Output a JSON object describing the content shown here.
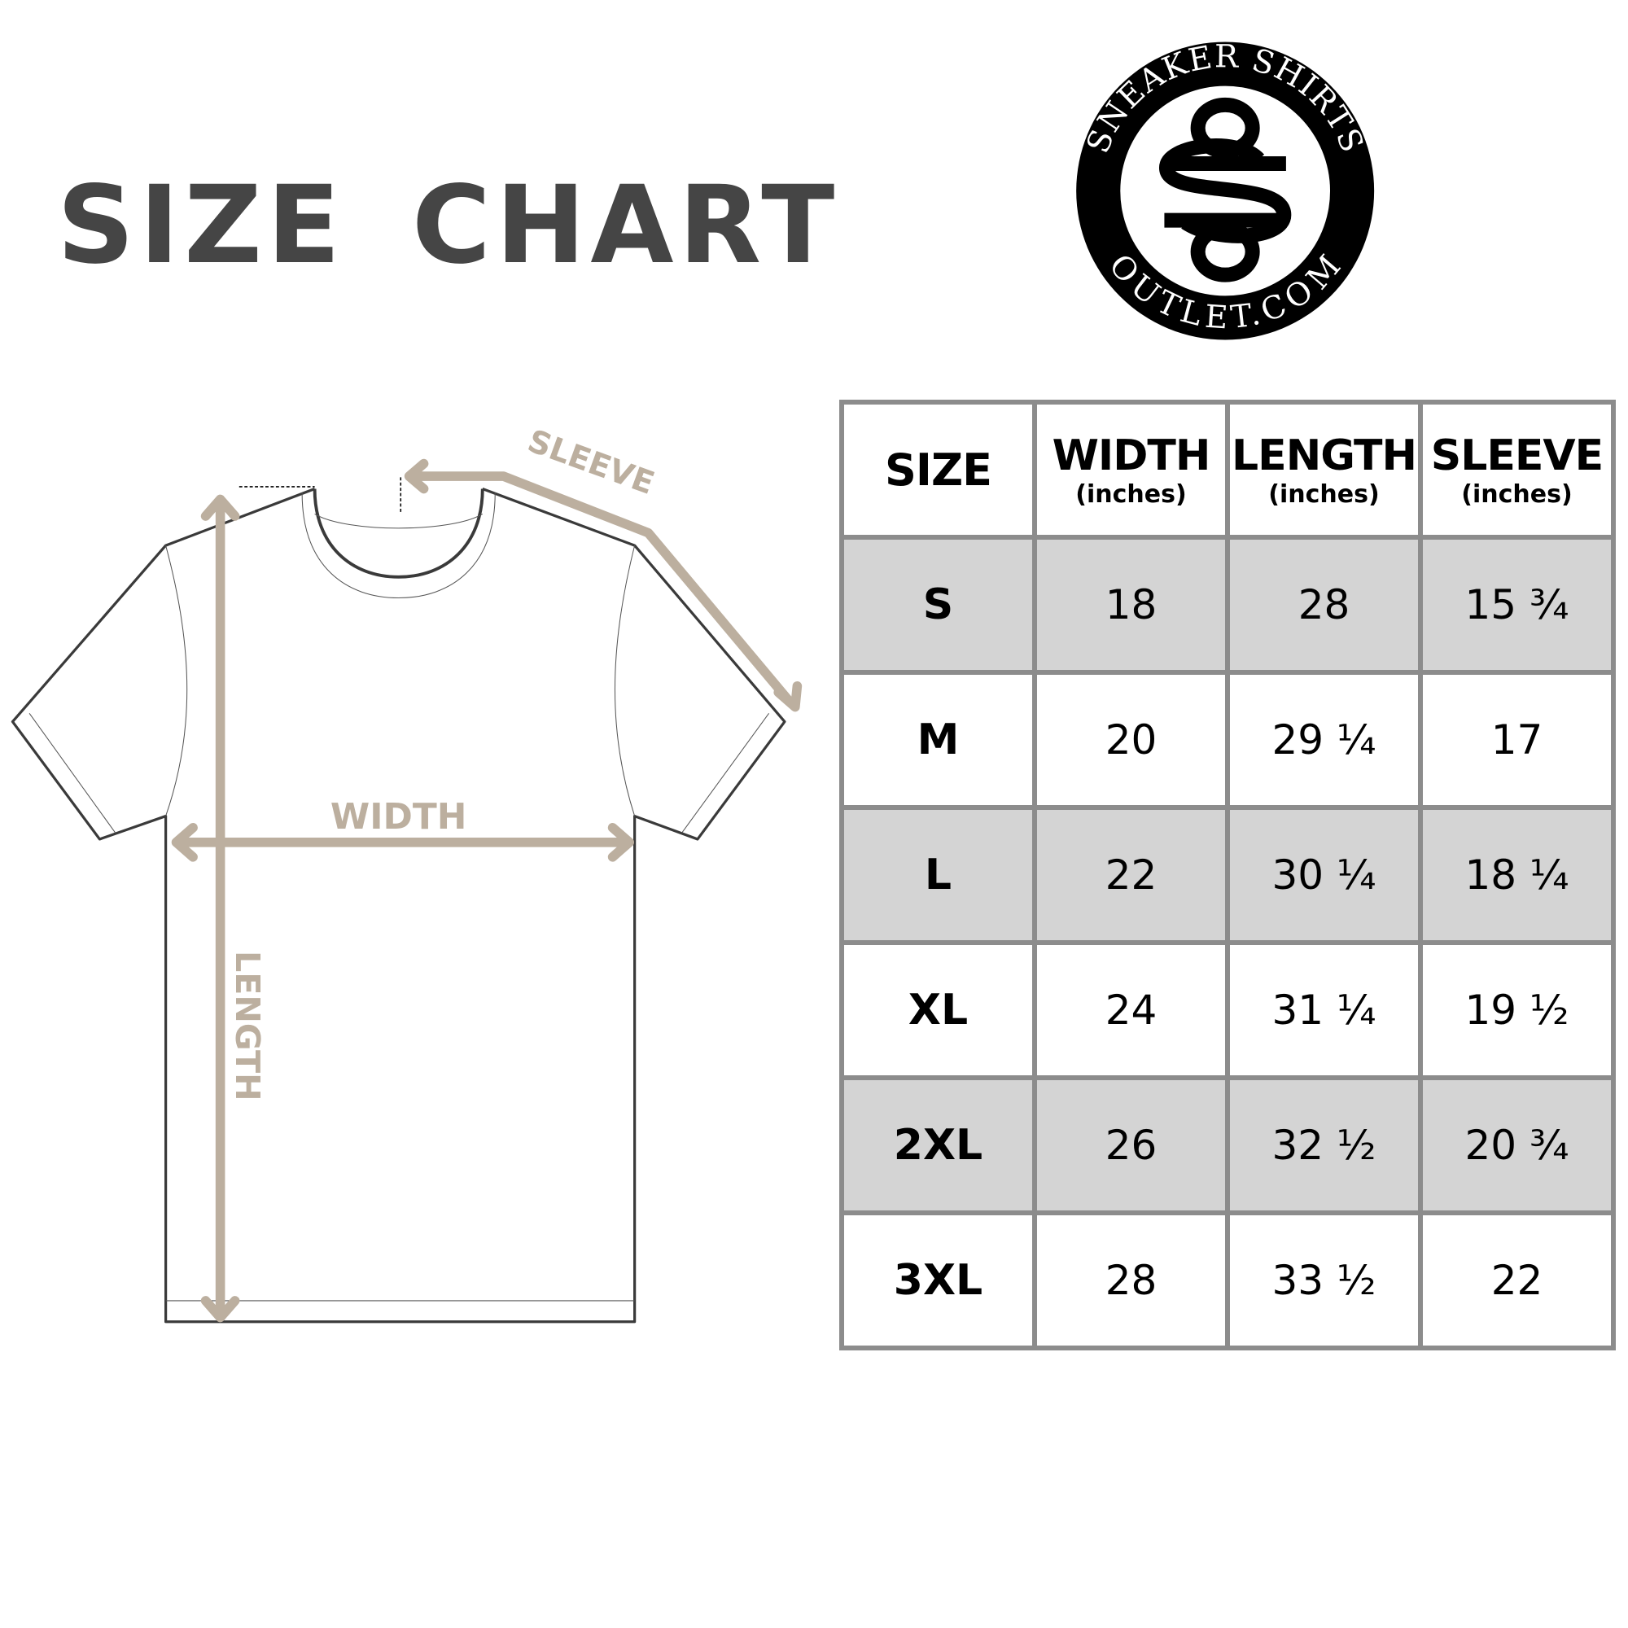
{
  "title": "SIZE CHART",
  "logo": {
    "top_text": "SNEAKER SHIRTS",
    "bottom_text": "OUTLET.COM",
    "monogram": "SSO"
  },
  "diagram": {
    "sleeve_label": "SLEEVE",
    "width_label": "WIDTH",
    "length_label": "LENGTH",
    "arrow_color": "#bcaf9f"
  },
  "table": {
    "headers": [
      {
        "label": "SIZE",
        "unit": ""
      },
      {
        "label": "WIDTH",
        "unit": "(inches)"
      },
      {
        "label": "LENGTH",
        "unit": "(inches)"
      },
      {
        "label": "SLEEVE",
        "unit": "(inches)"
      }
    ],
    "rows": [
      [
        "S",
        "18",
        "28",
        "15 ¾"
      ],
      [
        "M",
        "20",
        "29 ¼",
        "17"
      ],
      [
        "L",
        "22",
        "30 ¼",
        "18 ¼"
      ],
      [
        "XL",
        "24",
        "31 ¼",
        "19 ½"
      ],
      [
        "2XL",
        "26",
        "32 ½",
        "20 ¾"
      ],
      [
        "3XL",
        "28",
        "33 ½",
        "22"
      ]
    ]
  }
}
